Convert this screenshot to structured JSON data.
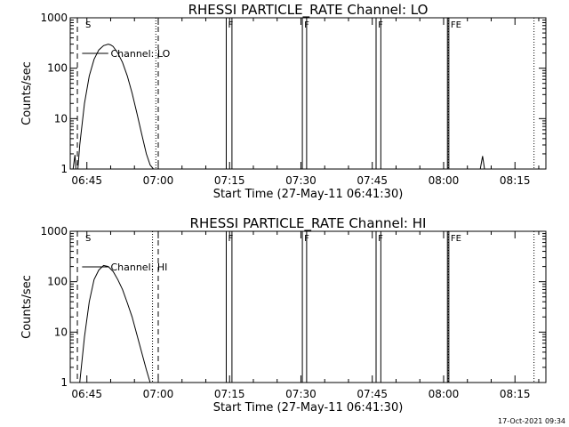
{
  "chart_data": [
    {
      "type": "line",
      "title": "RHESSI PARTICLE_RATE Channel: LO",
      "xlabel": "Start Time (27-May-11 06:41:30)",
      "ylabel": "Counts/sec",
      "y_scale": "log",
      "ylim": [
        1,
        1000
      ],
      "y_ticks": [
        1,
        10,
        100,
        1000
      ],
      "y_tick_labels": [
        "1",
        "10",
        "100",
        "1000"
      ],
      "x_unit": "minutes after 06:41:30",
      "xlim": [
        0,
        100
      ],
      "x_ticks": [
        3.5,
        18.5,
        33.5,
        48.5,
        63.5,
        78.5,
        93.5
      ],
      "x_tick_labels": [
        "06:45",
        "07:00",
        "07:15",
        "07:30",
        "07:45",
        "08:00",
        "08:15"
      ],
      "legend": {
        "text": "Channel: LO",
        "placement": "top-left"
      },
      "series": [
        {
          "x": [
            0.6,
            1.0,
            1.2,
            1.6,
            2.0,
            3.0,
            4.0,
            5.0,
            6.0,
            7.0,
            8.0,
            8.5,
            9.0,
            10.0,
            11.0,
            12.0,
            13.0,
            14.0,
            15.0,
            16.0,
            16.8,
            17.5
          ],
          "values": [
            1,
            1.9,
            1,
            1,
            3,
            20,
            70,
            150,
            230,
            280,
            300,
            290,
            270,
            200,
            130,
            70,
            32,
            13,
            5,
            2,
            1.2,
            1
          ]
        },
        {
          "x": [
            86.2,
            86.7,
            87.1
          ],
          "values": [
            1,
            1.8,
            1
          ]
        }
      ],
      "dashed_lines": [
        1.5,
        18.5
      ],
      "dotted_lines": [
        18.0,
        79.5,
        97.5
      ],
      "solid_line_pairs": [
        [
          32.8,
          34.0
        ],
        [
          48.8,
          49.7
        ],
        [
          64.3,
          65.3
        ],
        [
          79.3,
          79.6
        ]
      ],
      "flags": [
        {
          "label": "S",
          "x": 3.0
        },
        {
          "label": "F",
          "x": 33.0
        },
        {
          "label": "F",
          "x": 49.0
        },
        {
          "label": "F",
          "x": 64.5
        },
        {
          "label": "FE",
          "x": 79.8
        }
      ]
    },
    {
      "type": "line",
      "title": "RHESSI PARTICLE_RATE Channel: HI",
      "xlabel": "Start Time (27-May-11 06:41:30)",
      "ylabel": "Counts/sec",
      "y_scale": "log",
      "ylim": [
        1,
        1000
      ],
      "y_ticks": [
        1,
        10,
        100,
        1000
      ],
      "y_tick_labels": [
        "1",
        "10",
        "100",
        "1000"
      ],
      "x_unit": "minutes after 06:41:30",
      "xlim": [
        0,
        100
      ],
      "x_ticks": [
        3.5,
        18.5,
        33.5,
        48.5,
        63.5,
        78.5,
        93.5
      ],
      "x_tick_labels": [
        "06:45",
        "07:00",
        "07:15",
        "07:30",
        "07:45",
        "08:00",
        "08:15"
      ],
      "legend": {
        "text": "Channel: HI",
        "placement": "top-left"
      },
      "series": [
        {
          "x": [
            2.0,
            3.0,
            4.0,
            5.0,
            6.0,
            7.0,
            8.0,
            9.0,
            10.0,
            11.0,
            12.0,
            13.0,
            14.0,
            15.0,
            16.0,
            16.8
          ],
          "values": [
            1,
            8,
            40,
            110,
            170,
            210,
            200,
            160,
            110,
            70,
            38,
            20,
            9,
            4,
            1.8,
            1
          ]
        }
      ],
      "dashed_lines": [
        1.5,
        18.5
      ],
      "dotted_lines": [
        17.3,
        79.5,
        97.5
      ],
      "solid_line_pairs": [
        [
          32.8,
          34.0
        ],
        [
          48.8,
          49.7
        ],
        [
          64.3,
          65.3
        ],
        [
          79.3,
          79.6
        ]
      ],
      "flags": [
        {
          "label": "S",
          "x": 3.0
        },
        {
          "label": "F",
          "x": 33.0
        },
        {
          "label": "F",
          "x": 49.0
        },
        {
          "label": "F",
          "x": 64.5
        },
        {
          "label": "FE",
          "x": 79.8
        }
      ]
    }
  ],
  "footer": "17-Oct-2021 09:34"
}
